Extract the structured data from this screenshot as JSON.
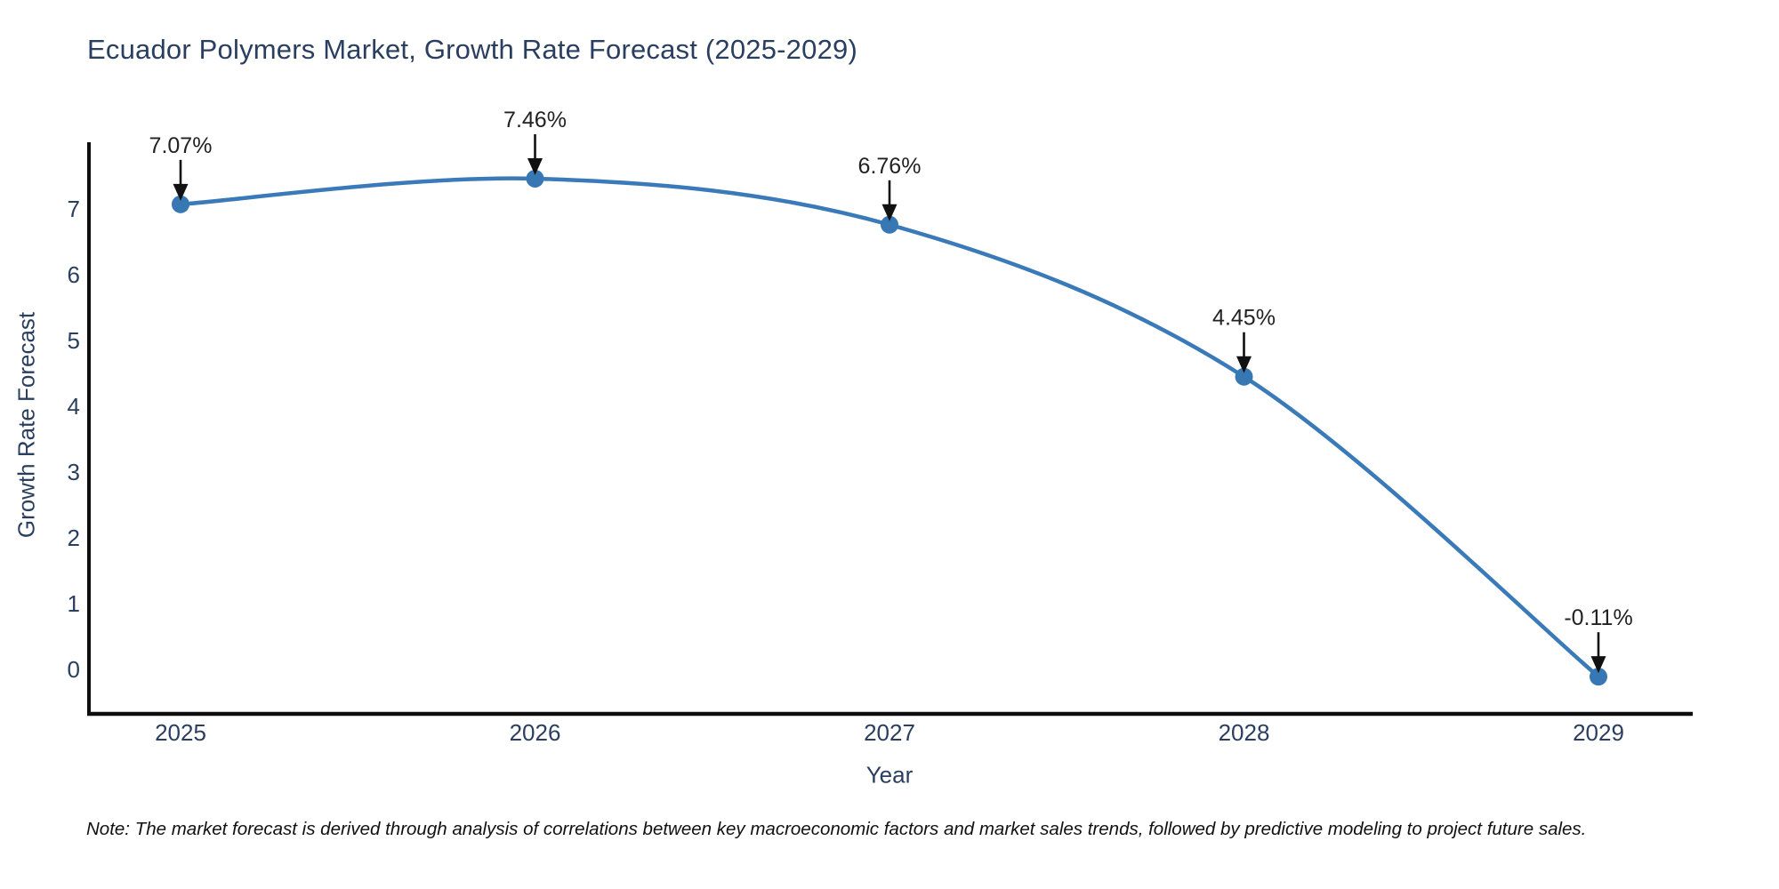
{
  "title": "Ecuador Polymers Market, Growth Rate Forecast (2025-2029)",
  "footnote": "Note: The market forecast is derived through analysis of correlations between key macroeconomic factors and market sales trends, followed by predictive modeling to project future sales.",
  "chart_data": {
    "type": "line",
    "title": "Ecuador Polymers Market, Growth Rate Forecast (2025-2029)",
    "xlabel": "Year",
    "ylabel": "Growth Rate Forecast",
    "x": [
      2025,
      2026,
      2027,
      2028,
      2029
    ],
    "values": [
      7.07,
      7.46,
      6.76,
      4.45,
      -0.11
    ],
    "point_labels": [
      "7.07%",
      "7.46%",
      "6.76%",
      "4.45%",
      "-0.11%"
    ],
    "x_tick_labels": [
      "2025",
      "2026",
      "2027",
      "2028",
      "2029"
    ],
    "y_ticks": [
      0,
      1,
      2,
      3,
      4,
      5,
      6,
      7
    ],
    "ylim": [
      -0.7,
      8.0
    ],
    "grid": "off",
    "legend": "none",
    "line_shape": "spline",
    "colors": {
      "line": "#3a7ab9",
      "marker": "#3778b4",
      "axis": "#0d0d0d",
      "tick_text": "#2a3f5f",
      "annotation_text": "#222222",
      "arrow": "#111111",
      "background": "#ffffff"
    }
  }
}
